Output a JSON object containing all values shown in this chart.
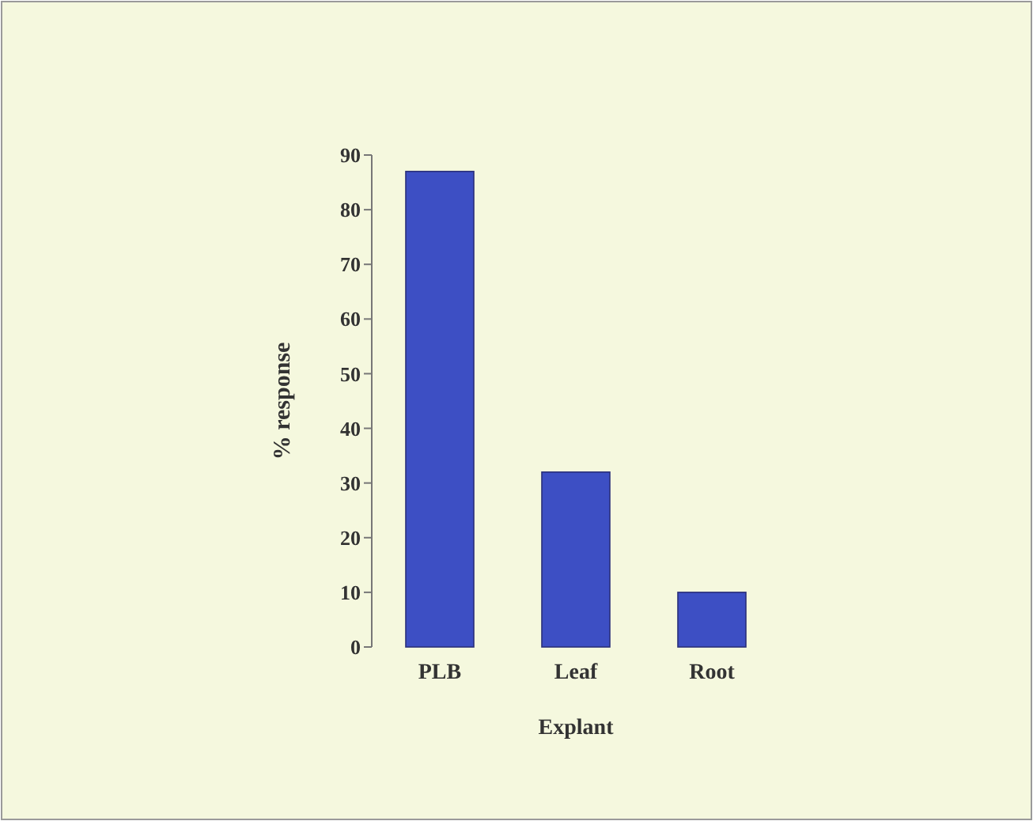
{
  "chart_data": {
    "type": "bar",
    "xlabel": "Explant",
    "ylabel": "% response",
    "categories": [
      "PLB",
      "Leaf",
      "Root"
    ],
    "values": [
      87,
      32,
      10
    ],
    "color": "#3d4fc4",
    "ylim": [
      0,
      90
    ],
    "yticks": [
      0,
      10,
      20,
      30,
      40,
      50,
      60,
      70,
      80,
      90
    ],
    "grid": false
  }
}
